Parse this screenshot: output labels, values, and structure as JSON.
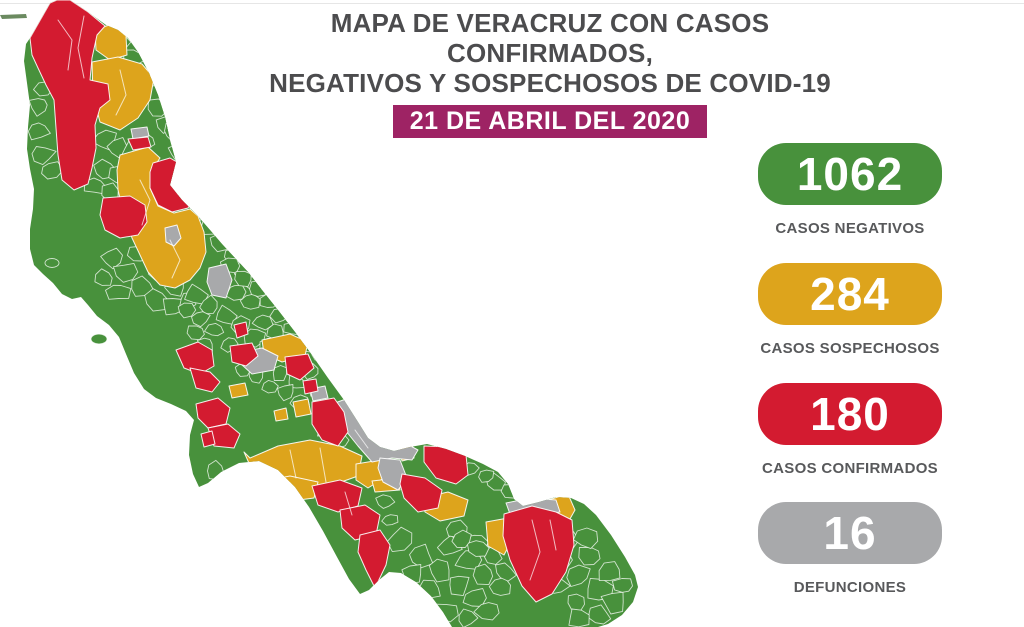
{
  "header": {
    "title_line1": "MAPA DE VERACRUZ CON CASOS CONFIRMADOS,",
    "title_line2": "NEGATIVOS Y SOSPECHOSOS DE COVID-19",
    "date": "21 DE ABRIL DEL 2020"
  },
  "stats": [
    {
      "id": "negativos",
      "value": "1062",
      "label": "CASOS NEGATIVOS",
      "color": "#48913C"
    },
    {
      "id": "sospechosos",
      "value": "284",
      "label": "CASOS SOSPECHOSOS",
      "color": "#DDA41C"
    },
    {
      "id": "confirmados",
      "value": "180",
      "label": "CASOS CONFIRMADOS",
      "color": "#D31B30"
    },
    {
      "id": "defunciones",
      "value": "16",
      "label": "DEFUNCIONES",
      "color": "#A8A9AB"
    }
  ],
  "map": {
    "state": "Veracruz",
    "legend": [
      {
        "color_key": "green",
        "meaning": "Casos negativos"
      },
      {
        "color_key": "yellow",
        "meaning": "Casos sospechosos"
      },
      {
        "color_key": "red",
        "meaning": "Casos confirmados"
      },
      {
        "color_key": "gray",
        "meaning": "Defunciones"
      }
    ]
  },
  "colors": {
    "green": "#48913C",
    "yellow": "#DDA41C",
    "red": "#D31B30",
    "gray": "#A8A9AB",
    "magenta": "#9E2364",
    "title_text": "#4C4C4E",
    "label_text": "#58595B",
    "border_top": "#E6E6E6"
  }
}
